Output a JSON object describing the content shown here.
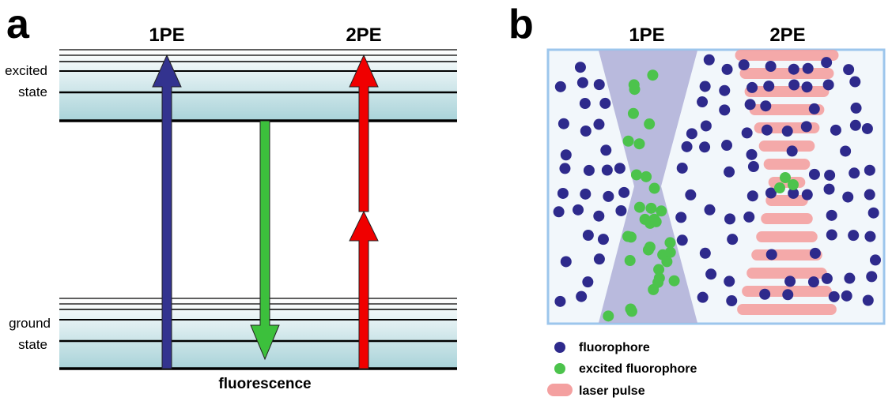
{
  "panel_a": {
    "label": "a",
    "columns": [
      "1PE",
      "2PE"
    ],
    "levels": {
      "excited": [
        "excited",
        "state"
      ],
      "ground": [
        "ground",
        "state"
      ]
    },
    "caption": "fluorescence"
  },
  "panel_b": {
    "label": "b",
    "columns": [
      "1PE",
      "2PE"
    ],
    "legend": [
      "fluorophore",
      "excited fluorophore",
      "laser pulse"
    ]
  }
}
